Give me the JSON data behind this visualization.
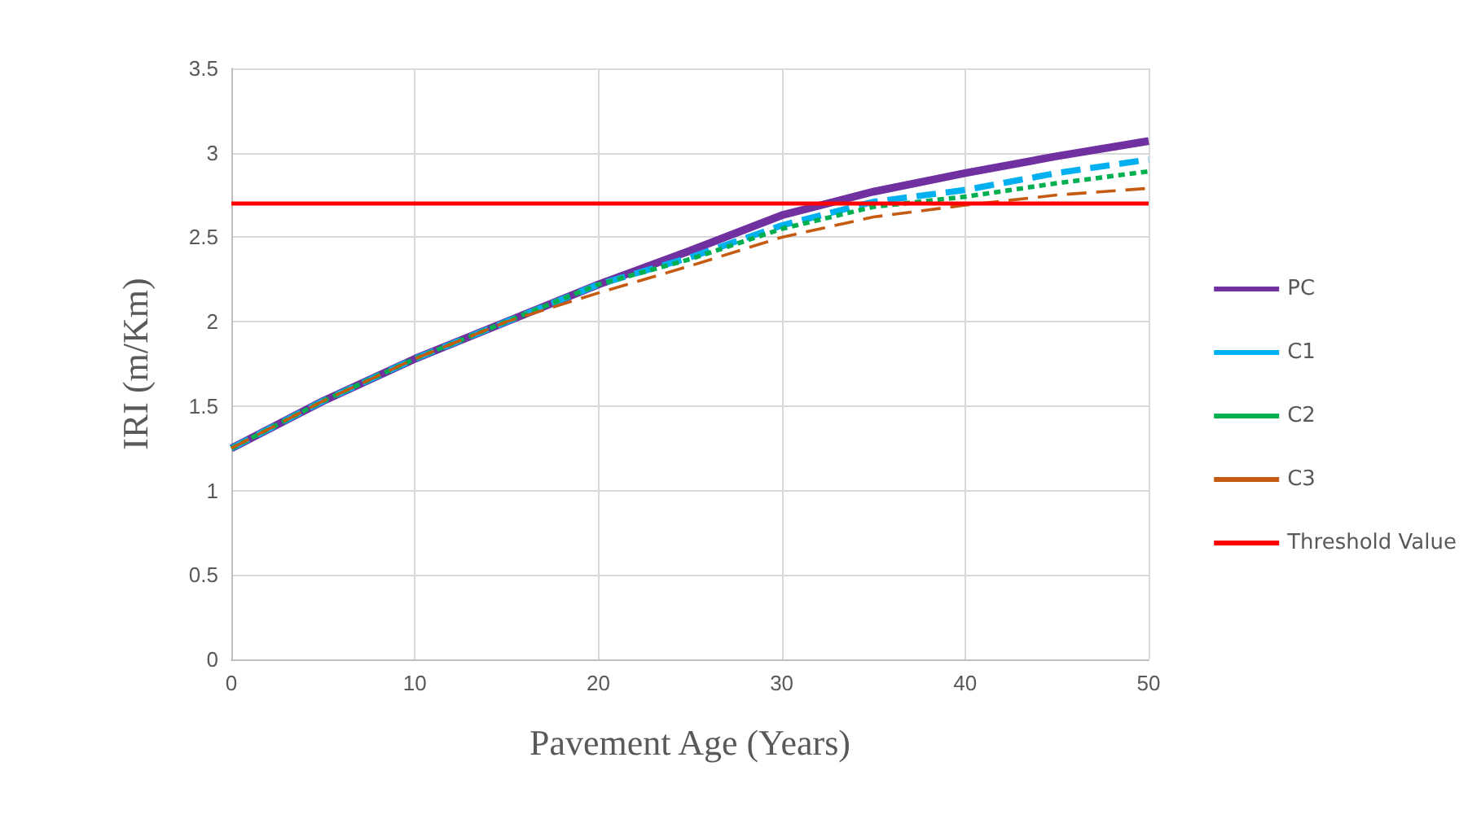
{
  "chart_data": {
    "type": "line",
    "xlabel": "Pavement Age (Years)",
    "ylabel": "IRI (m/Km)",
    "x": [
      0,
      5,
      10,
      15,
      20,
      25,
      30,
      35,
      40,
      45,
      50
    ],
    "series": [
      {
        "name": "PC",
        "color": "#7030a0",
        "line_style": "solid",
        "values": [
          1.25,
          1.53,
          1.78,
          2.0,
          2.22,
          2.42,
          2.63,
          2.77,
          2.88,
          2.98,
          3.07
        ]
      },
      {
        "name": "C1",
        "color": "#00b0f0",
        "line_style": "dashed",
        "values": [
          1.25,
          1.53,
          1.78,
          2.0,
          2.22,
          2.38,
          2.57,
          2.71,
          2.78,
          2.88,
          2.96
        ]
      },
      {
        "name": "C2",
        "color": "#00b050",
        "line_style": "dotted",
        "values": [
          1.25,
          1.53,
          1.78,
          2.0,
          2.22,
          2.37,
          2.55,
          2.68,
          2.74,
          2.82,
          2.89
        ]
      },
      {
        "name": "C3",
        "color": "#c55a11",
        "line_style": "dashed",
        "values": [
          1.25,
          1.53,
          1.78,
          2.0,
          2.17,
          2.33,
          2.5,
          2.62,
          2.69,
          2.75,
          2.79
        ]
      }
    ],
    "ref_lines": [
      {
        "axis": "y",
        "value": 2.7,
        "label": "Threshold Value",
        "color": "#ff0000"
      }
    ],
    "xlim": [
      0,
      50
    ],
    "xticks": [
      0,
      10,
      20,
      30,
      40,
      50
    ],
    "ylim": [
      0,
      3.5
    ],
    "yticks": [
      0,
      0.5,
      1,
      1.5,
      2,
      2.5,
      3,
      3.5
    ],
    "grid": true,
    "legend": "right",
    "marker": "none"
  }
}
